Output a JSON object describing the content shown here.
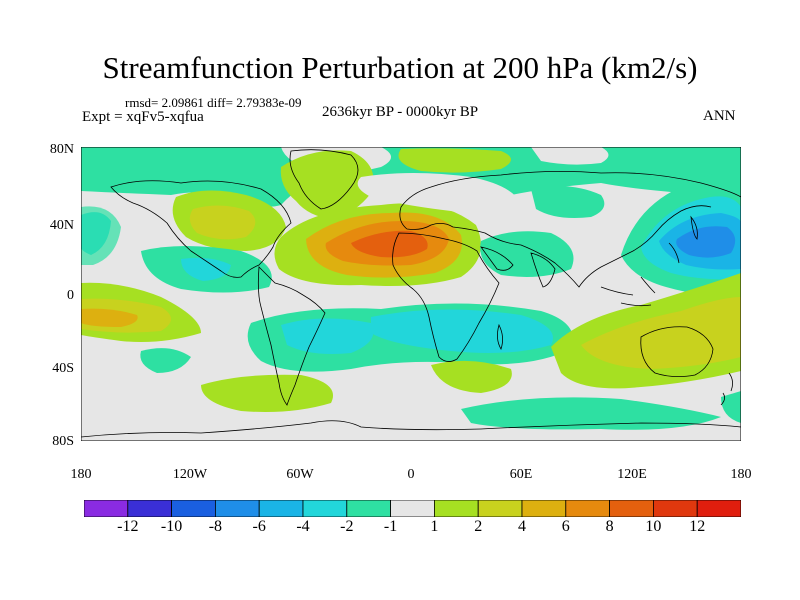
{
  "title": "Streamfunction Perturbation at 200 hPa (km2/s)",
  "stats": "rmsd= 2.09861 diff= 2.79383e-09",
  "experiment": "Expt = xqFv5-xqfua",
  "period": "2636kyr BP - 0000kyr BP",
  "season": "ANN",
  "y_axis_labels": [
    "80N",
    "40N",
    "0",
    "40S",
    "80S"
  ],
  "x_axis_labels": [
    "180",
    "120W",
    "60W",
    "0",
    "60E",
    "120E",
    "180"
  ],
  "colorbar": {
    "labels": [
      "-12",
      "-10",
      "-8",
      "-6",
      "-4",
      "-2",
      "-1",
      "1",
      "2",
      "4",
      "6",
      "8",
      "10",
      "12"
    ],
    "colors": [
      "#8a2be2",
      "#3a2fd6",
      "#1a5fe0",
      "#1f8ee8",
      "#1ab4e6",
      "#22d6da",
      "#2ee0a2",
      "#e6e6e6",
      "#a6e022",
      "#c8d21e",
      "#ddb010",
      "#e68a0e",
      "#e4600e",
      "#e0380e",
      "#e01e0e"
    ]
  },
  "colors": {
    "neutral": "#e6e6e6",
    "coast": "#000000"
  }
}
